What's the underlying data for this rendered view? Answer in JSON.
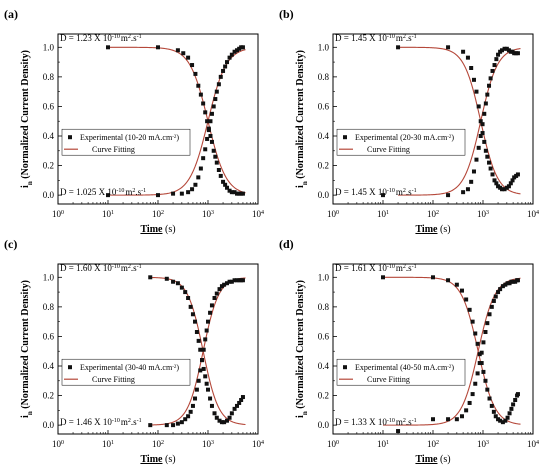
{
  "chart_data": [
    {
      "type": "scatter",
      "panel_label": "(a)",
      "xlabel": "Time",
      "xunit": "(s)",
      "x_scale": "log",
      "xlim": [
        1,
        10000
      ],
      "x_tick_exponents": [
        "0",
        "1",
        "2",
        "3",
        "4"
      ],
      "ylabel": "(Normalized Current Density)",
      "ylabel_symbol": "i",
      "ylabel_sub": "n",
      "ylim": [
        0,
        1.0
      ],
      "y_ticks": [
        "0.0",
        "0.2",
        "0.4",
        "0.6",
        "0.8",
        "1.0"
      ],
      "d_top": {
        "text": "D = 1.23 X 10",
        "exp": "-10",
        "unit": "m",
        "unit_exp": "2",
        "tail": ".s",
        "tail_exp": "-1"
      },
      "d_bottom": {
        "text": "D = 1.025 X 10",
        "exp": "-10",
        "unit": "m",
        "unit_exp": "2",
        "tail": ".s",
        "tail_exp": "-1"
      },
      "legend": {
        "placement": "lower-left",
        "exp_label": "Experimental (10-20 mA.cm",
        "exp_sup": "-2",
        "exp_close": ")",
        "fit_label": "Curve Fitting"
      },
      "series": [
        {
          "role": "decay",
          "x": [
            10,
            100,
            250,
            320,
            400,
            480,
            560,
            640,
            720,
            800,
            880,
            960,
            1040,
            1120,
            1200,
            1300,
            1400,
            1500,
            1650,
            1800,
            2000,
            2200,
            2400,
            2700,
            3000,
            3400,
            3800,
            4200,
            4600,
            5000
          ],
          "y": [
            1.0,
            1.0,
            0.98,
            0.96,
            0.93,
            0.88,
            0.82,
            0.74,
            0.68,
            0.62,
            0.56,
            0.5,
            0.45,
            0.4,
            0.36,
            0.3,
            0.26,
            0.22,
            0.17,
            0.13,
            0.09,
            0.07,
            0.05,
            0.03,
            0.02,
            0.02,
            0.01,
            0.01,
            0.01,
            0.01
          ]
        },
        {
          "role": "rise",
          "x": [
            10,
            100,
            200,
            300,
            400,
            480,
            560,
            640,
            720,
            800,
            880,
            960,
            1040,
            1120,
            1200,
            1300,
            1400,
            1500,
            1650,
            1800,
            2000,
            2200,
            2400,
            2700,
            3000,
            3400,
            3800,
            4200,
            4600,
            5000
          ],
          "y": [
            0.0,
            0.0,
            0.01,
            0.01,
            0.02,
            0.04,
            0.07,
            0.12,
            0.18,
            0.25,
            0.31,
            0.38,
            0.44,
            0.5,
            0.55,
            0.6,
            0.65,
            0.7,
            0.75,
            0.8,
            0.84,
            0.87,
            0.9,
            0.93,
            0.95,
            0.97,
            0.98,
            0.99,
            1.0,
            1.0
          ]
        }
      ],
      "fit": {
        "decay_tau": 1000,
        "rise_tau": 1000,
        "n": 2.4
      }
    },
    {
      "type": "scatter",
      "panel_label": "(b)",
      "xlabel": "Time",
      "xunit": "(s)",
      "x_scale": "log",
      "xlim": [
        1,
        10000
      ],
      "x_tick_exponents": [
        "0",
        "1",
        "2",
        "3",
        "4"
      ],
      "ylabel": "(Normalized Current Density)",
      "ylabel_symbol": "i",
      "ylabel_sub": "n",
      "ylim": [
        0,
        1.0
      ],
      "y_ticks": [
        "0.0",
        "0.2",
        "0.4",
        "0.6",
        "0.8",
        "1.0"
      ],
      "d_top": {
        "text": "D = 1.45 X 10",
        "exp": "-10",
        "unit": "m",
        "unit_exp": "2",
        "tail": ".s",
        "tail_exp": "-1"
      },
      "d_bottom": {
        "text": "D = 1.45 X 10",
        "exp": "-10",
        "unit": "m",
        "unit_exp": "2",
        "tail": ".s",
        "tail_exp": "-1"
      },
      "legend": {
        "placement": "lower-left",
        "exp_label": "Experimental (20-30 mA.cm",
        "exp_sup": "-2",
        "exp_close": ")",
        "fit_label": "Curve Fitting"
      },
      "series": [
        {
          "role": "decay",
          "x": [
            20,
            200,
            400,
            500,
            580,
            660,
            740,
            820,
            900,
            980,
            1060,
            1140,
            1220,
            1320,
            1420,
            1550,
            1700,
            1850,
            2000,
            2200,
            2400,
            2700,
            3000,
            3300,
            3600,
            3900,
            4200,
            4600,
            5000
          ],
          "y": [
            1.0,
            1.0,
            0.97,
            0.93,
            0.86,
            0.78,
            0.7,
            0.6,
            0.5,
            0.42,
            0.36,
            0.3,
            0.26,
            0.22,
            0.18,
            0.14,
            0.1,
            0.08,
            0.06,
            0.05,
            0.04,
            0.04,
            0.05,
            0.06,
            0.08,
            0.1,
            0.12,
            0.13,
            0.14
          ]
        },
        {
          "role": "rise",
          "x": [
            10,
            200,
            400,
            500,
            580,
            660,
            740,
            820,
            900,
            980,
            1060,
            1140,
            1220,
            1320,
            1420,
            1550,
            1700,
            1850,
            2000,
            2200,
            2400,
            2700,
            3000,
            3300,
            3600,
            3900,
            4200,
            4600,
            5000
          ],
          "y": [
            0.0,
            0.0,
            0.02,
            0.04,
            0.09,
            0.16,
            0.24,
            0.32,
            0.4,
            0.48,
            0.55,
            0.62,
            0.68,
            0.74,
            0.79,
            0.84,
            0.88,
            0.92,
            0.95,
            0.97,
            0.98,
            0.99,
            0.99,
            0.98,
            0.97,
            0.97,
            0.96,
            0.96,
            0.96
          ]
        }
      ],
      "fit": {
        "decay_tau": 900,
        "rise_tau": 900,
        "n": 2.6
      }
    },
    {
      "type": "scatter",
      "panel_label": "(c)",
      "xlabel": "Time",
      "xunit": "(s)",
      "x_scale": "log",
      "xlim": [
        1,
        10000
      ],
      "x_tick_exponents": [
        "0",
        "1",
        "2",
        "3",
        "4"
      ],
      "ylabel": "(Normalized Current Density)",
      "ylabel_symbol": "i",
      "ylabel_sub": "n",
      "ylim": [
        0,
        1.0
      ],
      "y_ticks": [
        "0.0",
        "0.2",
        "0.4",
        "0.6",
        "0.8",
        "1.0"
      ],
      "d_top": {
        "text": "D = 1.60 X 10",
        "exp": "-10",
        "unit": "m",
        "unit_exp": "2",
        "tail": ".s",
        "tail_exp": "-1"
      },
      "d_bottom": {
        "text": "D = 1.46 X 10",
        "exp": "-10",
        "unit": "m",
        "unit_exp": "2",
        "tail": ".s",
        "tail_exp": "-1"
      },
      "legend": {
        "placement": "lower-left",
        "exp_label": "Experimental (30-40 mA.cm",
        "exp_sup": "-2",
        "exp_close": ")",
        "fit_label": "Curve Fitting"
      },
      "series": [
        {
          "role": "decay",
          "x": [
            70,
            150,
            200,
            250,
            300,
            350,
            400,
            450,
            500,
            550,
            600,
            650,
            700,
            760,
            820,
            880,
            940,
            1000,
            1100,
            1200,
            1350,
            1500,
            1700,
            1900,
            2100,
            2400,
            2700,
            3000,
            3400,
            3800,
            4200,
            4600,
            5000
          ],
          "y": [
            1.0,
            0.99,
            0.97,
            0.96,
            0.93,
            0.9,
            0.86,
            0.8,
            0.75,
            0.7,
            0.63,
            0.57,
            0.51,
            0.44,
            0.38,
            0.33,
            0.28,
            0.24,
            0.18,
            0.13,
            0.08,
            0.05,
            0.03,
            0.02,
            0.02,
            0.03,
            0.05,
            0.08,
            0.11,
            0.13,
            0.15,
            0.17,
            0.19
          ]
        },
        {
          "role": "rise",
          "x": [
            70,
            150,
            200,
            250,
            300,
            350,
            400,
            450,
            500,
            550,
            600,
            650,
            700,
            760,
            820,
            880,
            940,
            1000,
            1100,
            1200,
            1350,
            1500,
            1700,
            1900,
            2100,
            2400,
            2700,
            3000,
            3400,
            3800,
            4200,
            4600,
            5000
          ],
          "y": [
            0.0,
            0.0,
            0.0,
            0.01,
            0.02,
            0.04,
            0.06,
            0.09,
            0.13,
            0.18,
            0.24,
            0.3,
            0.37,
            0.44,
            0.51,
            0.58,
            0.64,
            0.7,
            0.76,
            0.81,
            0.86,
            0.89,
            0.92,
            0.94,
            0.95,
            0.96,
            0.97,
            0.97,
            0.98,
            0.98,
            0.98,
            0.98,
            0.98
          ]
        }
      ],
      "fit": {
        "decay_tau": 800,
        "rise_tau": 800,
        "n": 2.8
      }
    },
    {
      "type": "scatter",
      "panel_label": "(d)",
      "xlabel": "Time",
      "xunit": "(s)",
      "x_scale": "log",
      "xlim": [
        1,
        10000
      ],
      "x_tick_exponents": [
        "0",
        "1",
        "2",
        "3",
        "4"
      ],
      "ylabel": "(Normalized Current Density)",
      "ylabel_symbol": "i",
      "ylabel_sub": "n",
      "ylim": [
        0,
        1.0
      ],
      "y_ticks": [
        "0.0",
        "0.2",
        "0.4",
        "0.6",
        "0.8",
        "1.0"
      ],
      "d_top": {
        "text": "D = 1.61 X 10",
        "exp": "-10",
        "unit": "m",
        "unit_exp": "2",
        "tail": ".s",
        "tail_exp": "-1"
      },
      "d_bottom": {
        "text": "D = 1.33 X 10",
        "exp": "-10",
        "unit": "m",
        "unit_exp": "2",
        "tail": ".s",
        "tail_exp": "-1"
      },
      "legend": {
        "placement": "lower-left",
        "exp_label": "Experimental (40-50 mA.cm",
        "exp_sup": "-2",
        "exp_close": ")",
        "fit_label": "Curve Fitting"
      },
      "series": [
        {
          "role": "decay",
          "x": [
            10,
            100,
            200,
            300,
            380,
            460,
            540,
            620,
            700,
            780,
            860,
            940,
            1020,
            1120,
            1220,
            1350,
            1500,
            1650,
            1800,
            2000,
            2200,
            2500,
            2800,
            3100,
            3400,
            3700,
            4000,
            4400,
            4800,
            5000
          ],
          "y": [
            1.0,
            1.0,
            0.98,
            0.95,
            0.91,
            0.85,
            0.78,
            0.7,
            0.62,
            0.55,
            0.48,
            0.42,
            0.36,
            0.3,
            0.24,
            0.18,
            0.13,
            0.09,
            0.06,
            0.04,
            0.03,
            0.02,
            0.03,
            0.05,
            0.08,
            0.11,
            0.14,
            0.17,
            0.2,
            0.21
          ]
        },
        {
          "role": "rise",
          "x": [
            20,
            100,
            200,
            300,
            380,
            460,
            540,
            620,
            700,
            780,
            860,
            940,
            1020,
            1120,
            1220,
            1350,
            1500,
            1650,
            1800,
            2000,
            2200,
            2500,
            2800,
            3100,
            3400,
            3700,
            4000,
            4400,
            4800,
            5000
          ],
          "y": [
            -0.04,
            0.04,
            0.04,
            0.04,
            0.06,
            0.1,
            0.15,
            0.21,
            0.28,
            0.35,
            0.42,
            0.49,
            0.56,
            0.63,
            0.69,
            0.75,
            0.8,
            0.84,
            0.87,
            0.9,
            0.92,
            0.94,
            0.95,
            0.96,
            0.96,
            0.97,
            0.97,
            0.97,
            0.98,
            0.98
          ]
        }
      ],
      "fit": {
        "decay_tau": 800,
        "rise_tau": 800,
        "n": 2.6
      }
    }
  ],
  "colors": {
    "fit_line": "#b5483a",
    "marker": "#111111",
    "axis": "#000000",
    "background": "#ffffff"
  }
}
